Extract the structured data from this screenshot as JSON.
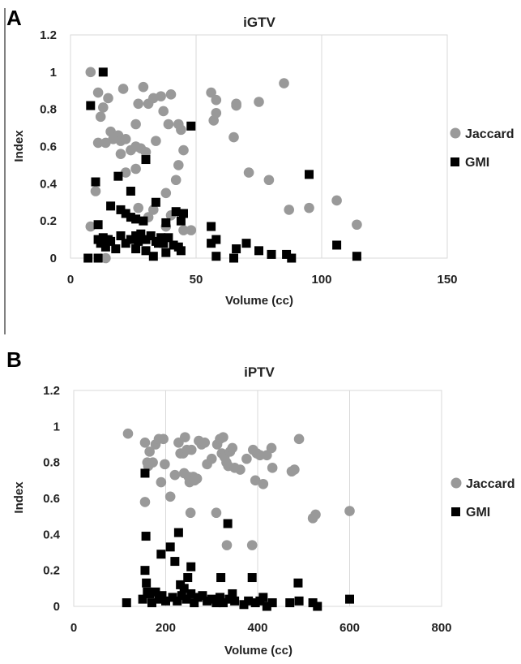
{
  "panels": [
    {
      "letter": "A",
      "chart_data": {
        "type": "scatter",
        "title": "iGTV",
        "xlabel": "Volume  (cc)",
        "ylabel": "Index",
        "xlim": [
          0,
          150
        ],
        "ylim": [
          0,
          1.2
        ],
        "xticks": [
          "0",
          "50",
          "100",
          "150"
        ],
        "yticks": [
          "0",
          "0.2",
          "0.4",
          "0.6",
          "0.8",
          "1",
          "1.2"
        ],
        "grid": "vertical",
        "legend_position": "right",
        "series": [
          {
            "name": "Jaccard",
            "marker": "circle",
            "color": "#999999",
            "points": [
              [
                8,
                1.0
              ],
              [
                11,
                0.89
              ],
              [
                13,
                0.81
              ],
              [
                12,
                0.76
              ],
              [
                15,
                0.86
              ],
              [
                16,
                0.68
              ],
              [
                11,
                0.62
              ],
              [
                14,
                0.62
              ],
              [
                17,
                0.64
              ],
              [
                19,
                0.66
              ],
              [
                20,
                0.63
              ],
              [
                22,
                0.64
              ],
              [
                21,
                0.91
              ],
              [
                20,
                0.56
              ],
              [
                24,
                0.58
              ],
              [
                26,
                0.72
              ],
              [
                26,
                0.6
              ],
              [
                28,
                0.59
              ],
              [
                29,
                0.92
              ],
              [
                30,
                0.57
              ],
              [
                31,
                0.83
              ],
              [
                27,
                0.83
              ],
              [
                33,
                0.86
              ],
              [
                36,
                0.87
              ],
              [
                37,
                0.79
              ],
              [
                39,
                0.72
              ],
              [
                40,
                0.88
              ],
              [
                34,
                0.63
              ],
              [
                43,
                0.72
              ],
              [
                44,
                0.69
              ],
              [
                45,
                0.58
              ],
              [
                43,
                0.5
              ],
              [
                42,
                0.42
              ],
              [
                38,
                0.35
              ],
              [
                40,
                0.23
              ],
              [
                38,
                0.17
              ],
              [
                45,
                0.15
              ],
              [
                48,
                0.15
              ],
              [
                22,
                0.46
              ],
              [
                26,
                0.48
              ],
              [
                10,
                0.36
              ],
              [
                8,
                0.17
              ],
              [
                27,
                0.27
              ],
              [
                33,
                0.26
              ],
              [
                31,
                0.22
              ],
              [
                14,
                0.0
              ],
              [
                56,
                0.89
              ],
              [
                57,
                0.74
              ],
              [
                58,
                0.78
              ],
              [
                58,
                0.85
              ],
              [
                66,
                0.83
              ],
              [
                66,
                0.82
              ],
              [
                75,
                0.84
              ],
              [
                65,
                0.65
              ],
              [
                71,
                0.46
              ],
              [
                79,
                0.42
              ],
              [
                85,
                0.94
              ],
              [
                87,
                0.26
              ],
              [
                95,
                0.27
              ],
              [
                106,
                0.31
              ],
              [
                114,
                0.18
              ]
            ]
          },
          {
            "name": "GMI",
            "marker": "square",
            "color": "#000000",
            "points": [
              [
                13,
                1.0
              ],
              [
                8,
                0.82
              ],
              [
                10,
                0.41
              ],
              [
                11,
                0.18
              ],
              [
                16,
                0.28
              ],
              [
                19,
                0.44
              ],
              [
                20,
                0.26
              ],
              [
                22,
                0.24
              ],
              [
                24,
                0.22
              ],
              [
                24,
                0.36
              ],
              [
                26,
                0.21
              ],
              [
                29,
                0.2
              ],
              [
                30,
                0.53
              ],
              [
                34,
                0.3
              ],
              [
                38,
                0.19
              ],
              [
                42,
                0.25
              ],
              [
                45,
                0.24
              ],
              [
                44,
                0.2
              ],
              [
                48,
                0.71
              ],
              [
                11,
                0.1
              ],
              [
                12,
                0.08
              ],
              [
                13,
                0.11
              ],
              [
                14,
                0.06
              ],
              [
                15,
                0.1
              ],
              [
                16,
                0.09
              ],
              [
                18,
                0.05
              ],
              [
                20,
                0.12
              ],
              [
                22,
                0.08
              ],
              [
                24,
                0.1
              ],
              [
                26,
                0.12
              ],
              [
                27,
                0.09
              ],
              [
                28,
                0.13
              ],
              [
                30,
                0.1
              ],
              [
                32,
                0.12
              ],
              [
                34,
                0.09
              ],
              [
                36,
                0.11
              ],
              [
                37,
                0.08
              ],
              [
                39,
                0.11
              ],
              [
                41,
                0.07
              ],
              [
                43,
                0.06
              ],
              [
                44,
                0.04
              ],
              [
                35,
                0.08
              ],
              [
                30,
                0.04
              ],
              [
                26,
                0.05
              ],
              [
                38,
                0.03
              ],
              [
                33,
                0.01
              ],
              [
                7,
                0.0
              ],
              [
                11,
                0.0
              ],
              [
                56,
                0.17
              ],
              [
                58,
                0.1
              ],
              [
                56,
                0.08
              ],
              [
                58,
                0.01
              ],
              [
                66,
                0.05
              ],
              [
                65,
                0.0
              ],
              [
                70,
                0.08
              ],
              [
                75,
                0.04
              ],
              [
                80,
                0.02
              ],
              [
                86,
                0.02
              ],
              [
                88,
                0.0
              ],
              [
                95,
                0.45
              ],
              [
                106,
                0.07
              ],
              [
                114,
                0.01
              ]
            ]
          }
        ]
      }
    },
    {
      "letter": "B",
      "chart_data": {
        "type": "scatter",
        "title": "iPTV",
        "xlabel": "Volume  (cc)",
        "ylabel": "Index",
        "xlim": [
          0,
          800
        ],
        "ylim": [
          0,
          1.2
        ],
        "xticks": [
          "0",
          "200",
          "400",
          "600",
          "800"
        ],
        "yticks": [
          "0",
          "0.2",
          "0.4",
          "0.6",
          "0.8",
          "1",
          "1.2"
        ],
        "grid": "vertical",
        "legend_position": "right",
        "series": [
          {
            "name": "Jaccard",
            "marker": "circle",
            "color": "#999999",
            "points": [
              [
                118,
                0.96
              ],
              [
                155,
                0.91
              ],
              [
                165,
                0.86
              ],
              [
                160,
                0.8
              ],
              [
                162,
                0.78
              ],
              [
                172,
                0.8
              ],
              [
                178,
                0.9
              ],
              [
                185,
                0.93
              ],
              [
                195,
                0.93
              ],
              [
                198,
                0.79
              ],
              [
                190,
                0.69
              ],
              [
                210,
                0.61
              ],
              [
                220,
                0.73
              ],
              [
                228,
                0.91
              ],
              [
                232,
                0.85
              ],
              [
                238,
                0.85
              ],
              [
                242,
                0.94
              ],
              [
                240,
                0.74
              ],
              [
                246,
                0.87
              ],
              [
                250,
                0.72
              ],
              [
                252,
                0.69
              ],
              [
                256,
                0.87
              ],
              [
                260,
                0.72
              ],
              [
                263,
                0.7
              ],
              [
                268,
                0.71
              ],
              [
                272,
                0.92
              ],
              [
                278,
                0.9
              ],
              [
                285,
                0.91
              ],
              [
                290,
                0.79
              ],
              [
                300,
                0.82
              ],
              [
                312,
                0.9
              ],
              [
                318,
                0.93
              ],
              [
                322,
                0.85
              ],
              [
                325,
                0.94
              ],
              [
                328,
                0.83
              ],
              [
                332,
                0.8
              ],
              [
                336,
                0.78
              ],
              [
                340,
                0.86
              ],
              [
                345,
                0.88
              ],
              [
                350,
                0.77
              ],
              [
                362,
                0.76
              ],
              [
                376,
                0.82
              ],
              [
                390,
                0.87
              ],
              [
                395,
                0.7
              ],
              [
                398,
                0.85
              ],
              [
                405,
                0.84
              ],
              [
                412,
                0.68
              ],
              [
                420,
                0.84
              ],
              [
                430,
                0.88
              ],
              [
                432,
                0.77
              ],
              [
                474,
                0.75
              ],
              [
                480,
                0.76
              ],
              [
                490,
                0.93
              ],
              [
                155,
                0.58
              ],
              [
                254,
                0.52
              ],
              [
                310,
                0.52
              ],
              [
                333,
                0.34
              ],
              [
                388,
                0.34
              ],
              [
                520,
                0.49
              ],
              [
                526,
                0.51
              ],
              [
                600,
                0.53
              ]
            ]
          },
          {
            "name": "GMI",
            "marker": "square",
            "color": "#000000",
            "points": [
              [
                155,
                0.74
              ],
              [
                157,
                0.39
              ],
              [
                155,
                0.2
              ],
              [
                158,
                0.13
              ],
              [
                160,
                0.08
              ],
              [
                190,
                0.29
              ],
              [
                210,
                0.33
              ],
              [
                220,
                0.25
              ],
              [
                228,
                0.41
              ],
              [
                232,
                0.12
              ],
              [
                240,
                0.1
              ],
              [
                248,
                0.16
              ],
              [
                255,
                0.22
              ],
              [
                320,
                0.16
              ],
              [
                335,
                0.46
              ],
              [
                388,
                0.16
              ],
              [
                488,
                0.13
              ],
              [
                115,
                0.02
              ],
              [
                150,
                0.04
              ],
              [
                165,
                0.07
              ],
              [
                170,
                0.02
              ],
              [
                178,
                0.08
              ],
              [
                185,
                0.04
              ],
              [
                192,
                0.06
              ],
              [
                200,
                0.03
              ],
              [
                215,
                0.05
              ],
              [
                225,
                0.03
              ],
              [
                235,
                0.06
              ],
              [
                245,
                0.04
              ],
              [
                255,
                0.07
              ],
              [
                262,
                0.02
              ],
              [
                270,
                0.05
              ],
              [
                280,
                0.06
              ],
              [
                290,
                0.03
              ],
              [
                300,
                0.04
              ],
              [
                310,
                0.02
              ],
              [
                318,
                0.05
              ],
              [
                325,
                0.02
              ],
              [
                338,
                0.04
              ],
              [
                345,
                0.07
              ],
              [
                350,
                0.03
              ],
              [
                370,
                0.01
              ],
              [
                380,
                0.03
              ],
              [
                395,
                0.02
              ],
              [
                405,
                0.03
              ],
              [
                412,
                0.05
              ],
              [
                420,
                0.0
              ],
              [
                432,
                0.02
              ],
              [
                470,
                0.02
              ],
              [
                490,
                0.03
              ],
              [
                520,
                0.02
              ],
              [
                530,
                0.0
              ],
              [
                600,
                0.04
              ]
            ]
          }
        ]
      }
    }
  ]
}
